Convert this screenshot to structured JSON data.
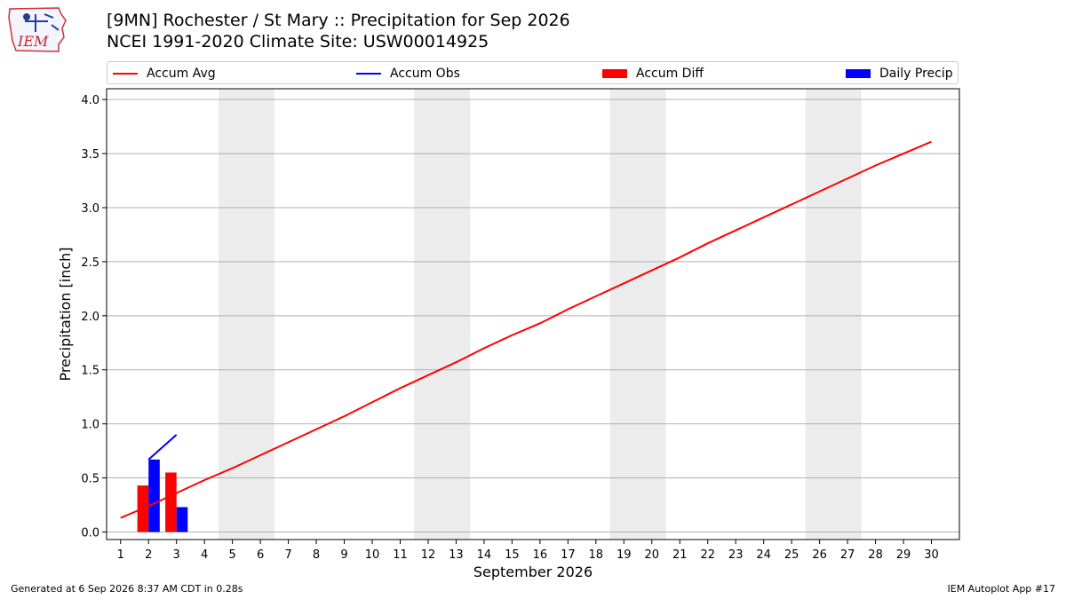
{
  "header": {
    "title_line1": "[9MN] Rochester / St Mary :: Precipitation for Sep 2026",
    "title_line2": "NCEI 1991-2020 Climate Site: USW00014925",
    "logo_text": "IEM"
  },
  "legend": {
    "position": "top, full width",
    "items": [
      {
        "label": "Accum Avg",
        "kind": "line",
        "color": "#ff0000"
      },
      {
        "label": "Accum Obs",
        "kind": "line",
        "color": "#0000ff"
      },
      {
        "label": "Accum Diff",
        "kind": "patch",
        "color": "#ff0000"
      },
      {
        "label": "Daily Precip",
        "kind": "patch",
        "color": "#0000ff"
      }
    ]
  },
  "footer": {
    "left": "Generated at 6 Sep 2026 8:37 AM CDT in 0.28s",
    "right": "IEM Autoplot App #17"
  },
  "chart_data": {
    "type": "line",
    "xlabel": "September 2026",
    "ylabel": "Precipitation [inch]",
    "xlim": [
      0.5,
      31
    ],
    "ylim": [
      -0.07,
      4.1
    ],
    "x_ticks": [
      1,
      2,
      3,
      4,
      5,
      6,
      7,
      8,
      9,
      10,
      11,
      12,
      13,
      14,
      15,
      16,
      17,
      18,
      19,
      20,
      21,
      22,
      23,
      24,
      25,
      26,
      27,
      28,
      29,
      30
    ],
    "y_ticks": [
      0.0,
      0.5,
      1.0,
      1.5,
      2.0,
      2.5,
      3.0,
      3.5,
      4.0
    ],
    "y_tick_labels": [
      "0.0",
      "0.5",
      "1.0",
      "1.5",
      "2.0",
      "2.5",
      "3.0",
      "3.5",
      "4.0"
    ],
    "grid": "horizontal",
    "weekend_shading": {
      "color": "#ececec",
      "ranges": [
        [
          4.5,
          6.5
        ],
        [
          11.5,
          13.5
        ],
        [
          18.5,
          20.5
        ],
        [
          25.5,
          27.5
        ]
      ]
    },
    "series": [
      {
        "name": "Accum Avg",
        "kind": "line",
        "color": "#ff0000",
        "x": [
          1,
          2,
          3,
          4,
          5,
          6,
          7,
          8,
          9,
          10,
          11,
          12,
          13,
          14,
          15,
          16,
          17,
          18,
          19,
          20,
          21,
          22,
          23,
          24,
          25,
          26,
          27,
          28,
          29,
          30
        ],
        "y": [
          0.13,
          0.24,
          0.36,
          0.48,
          0.59,
          0.71,
          0.83,
          0.95,
          1.07,
          1.2,
          1.33,
          1.45,
          1.57,
          1.7,
          1.82,
          1.93,
          2.06,
          2.18,
          2.3,
          2.42,
          2.54,
          2.67,
          2.79,
          2.91,
          3.03,
          3.15,
          3.27,
          3.39,
          3.5,
          3.61
        ]
      },
      {
        "name": "Accum Obs",
        "kind": "line",
        "color": "#0000ff",
        "x": [
          2,
          3
        ],
        "y": [
          0.67,
          0.9
        ]
      },
      {
        "name": "Accum Diff",
        "kind": "bar",
        "color": "#ff0000",
        "x": [
          2,
          3
        ],
        "y": [
          0.43,
          0.55
        ]
      },
      {
        "name": "Daily Precip",
        "kind": "bar",
        "color": "#0000ff",
        "x": [
          2,
          3
        ],
        "y": [
          0.67,
          0.23
        ]
      }
    ]
  }
}
